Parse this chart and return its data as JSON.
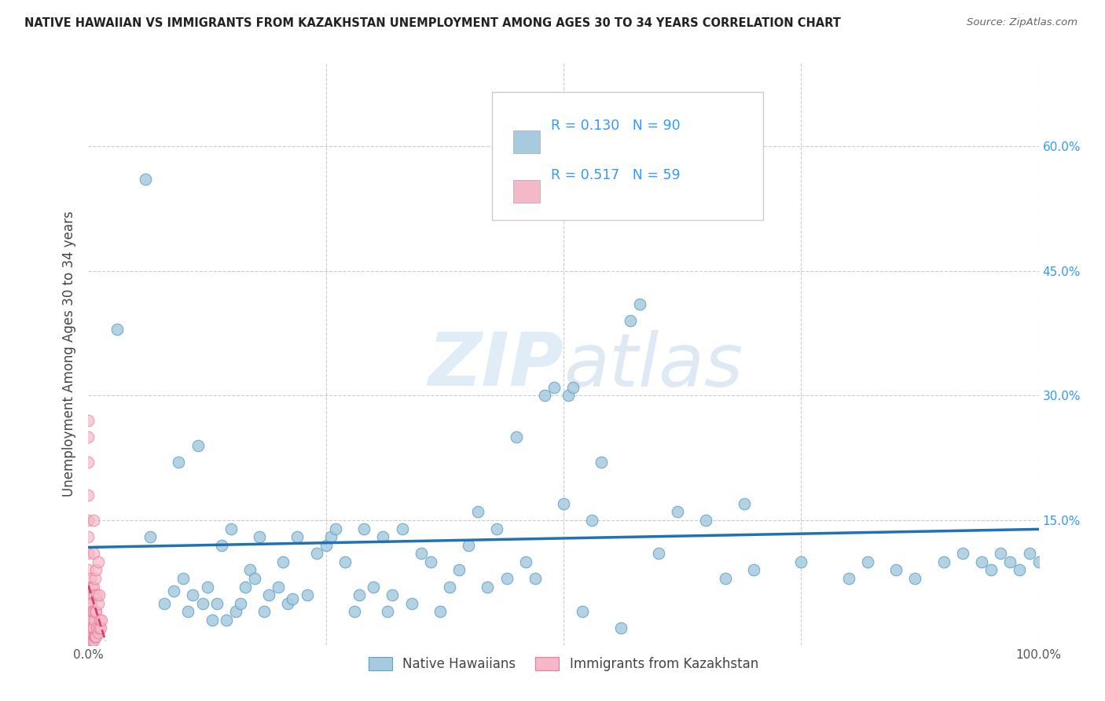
{
  "title": "NATIVE HAWAIIAN VS IMMIGRANTS FROM KAZAKHSTAN UNEMPLOYMENT AMONG AGES 30 TO 34 YEARS CORRELATION CHART",
  "source": "Source: ZipAtlas.com",
  "ylabel": "Unemployment Among Ages 30 to 34 years",
  "xlim": [
    0,
    1.0
  ],
  "ylim": [
    0,
    0.7
  ],
  "yticks": [
    0.0,
    0.15,
    0.3,
    0.45,
    0.6
  ],
  "ytick_labels_right": [
    "",
    "15.0%",
    "30.0%",
    "45.0%",
    "60.0%"
  ],
  "blue_color": "#a8cadf",
  "blue_edge_color": "#5fa2c8",
  "pink_color": "#f4b8c8",
  "pink_edge_color": "#e87a9a",
  "trend_blue_color": "#2171b5",
  "trend_pink_color": "#d44070",
  "watermark": "ZIPatlas",
  "blue_scatter_x": [
    0.03,
    0.06,
    0.065,
    0.08,
    0.09,
    0.095,
    0.1,
    0.105,
    0.11,
    0.115,
    0.12,
    0.125,
    0.13,
    0.135,
    0.14,
    0.145,
    0.15,
    0.155,
    0.16,
    0.165,
    0.17,
    0.175,
    0.18,
    0.185,
    0.19,
    0.2,
    0.205,
    0.21,
    0.215,
    0.22,
    0.23,
    0.24,
    0.25,
    0.255,
    0.26,
    0.27,
    0.28,
    0.285,
    0.29,
    0.3,
    0.31,
    0.315,
    0.32,
    0.33,
    0.34,
    0.35,
    0.36,
    0.37,
    0.38,
    0.39,
    0.4,
    0.41,
    0.42,
    0.43,
    0.44,
    0.45,
    0.46,
    0.47,
    0.48,
    0.49,
    0.5,
    0.505,
    0.51,
    0.52,
    0.53,
    0.54,
    0.56,
    0.57,
    0.58,
    0.59,
    0.6,
    0.62,
    0.65,
    0.67,
    0.69,
    0.7,
    0.75,
    0.8,
    0.82,
    0.85,
    0.87,
    0.9,
    0.92,
    0.94,
    0.95,
    0.96,
    0.97,
    0.98,
    0.99,
    1.0
  ],
  "blue_scatter_y": [
    0.38,
    0.56,
    0.13,
    0.05,
    0.065,
    0.22,
    0.08,
    0.04,
    0.06,
    0.24,
    0.05,
    0.07,
    0.03,
    0.05,
    0.12,
    0.03,
    0.14,
    0.04,
    0.05,
    0.07,
    0.09,
    0.08,
    0.13,
    0.04,
    0.06,
    0.07,
    0.1,
    0.05,
    0.055,
    0.13,
    0.06,
    0.11,
    0.12,
    0.13,
    0.14,
    0.1,
    0.04,
    0.06,
    0.14,
    0.07,
    0.13,
    0.04,
    0.06,
    0.14,
    0.05,
    0.11,
    0.1,
    0.04,
    0.07,
    0.09,
    0.12,
    0.16,
    0.07,
    0.14,
    0.08,
    0.25,
    0.1,
    0.08,
    0.3,
    0.31,
    0.17,
    0.3,
    0.31,
    0.04,
    0.15,
    0.22,
    0.02,
    0.39,
    0.41,
    0.55,
    0.11,
    0.16,
    0.15,
    0.08,
    0.17,
    0.09,
    0.1,
    0.08,
    0.1,
    0.09,
    0.08,
    0.1,
    0.11,
    0.1,
    0.09,
    0.11,
    0.1,
    0.09,
    0.11,
    0.1
  ],
  "pink_scatter_x": [
    0.0,
    0.0,
    0.0,
    0.0,
    0.0,
    0.0,
    0.0,
    0.0,
    0.0,
    0.0,
    0.0,
    0.0,
    0.0,
    0.0,
    0.0,
    0.0,
    0.0,
    0.0,
    0.0,
    0.0,
    0.002,
    0.002,
    0.002,
    0.002,
    0.002,
    0.002,
    0.003,
    0.003,
    0.003,
    0.003,
    0.004,
    0.004,
    0.004,
    0.004,
    0.005,
    0.005,
    0.005,
    0.005,
    0.005,
    0.005,
    0.006,
    0.006,
    0.006,
    0.007,
    0.007,
    0.007,
    0.008,
    0.008,
    0.008,
    0.009,
    0.009,
    0.01,
    0.01,
    0.01,
    0.011,
    0.011,
    0.012,
    0.013,
    0.014
  ],
  "pink_scatter_y": [
    0.0,
    0.0,
    0.005,
    0.01,
    0.015,
    0.02,
    0.025,
    0.03,
    0.04,
    0.05,
    0.06,
    0.07,
    0.09,
    0.11,
    0.13,
    0.15,
    0.18,
    0.22,
    0.25,
    0.27,
    0.0,
    0.01,
    0.02,
    0.03,
    0.05,
    0.08,
    0.0,
    0.015,
    0.03,
    0.05,
    0.005,
    0.02,
    0.04,
    0.07,
    0.005,
    0.02,
    0.04,
    0.07,
    0.11,
    0.15,
    0.01,
    0.03,
    0.06,
    0.01,
    0.04,
    0.08,
    0.01,
    0.04,
    0.09,
    0.02,
    0.06,
    0.015,
    0.05,
    0.1,
    0.02,
    0.06,
    0.03,
    0.02,
    0.03
  ]
}
